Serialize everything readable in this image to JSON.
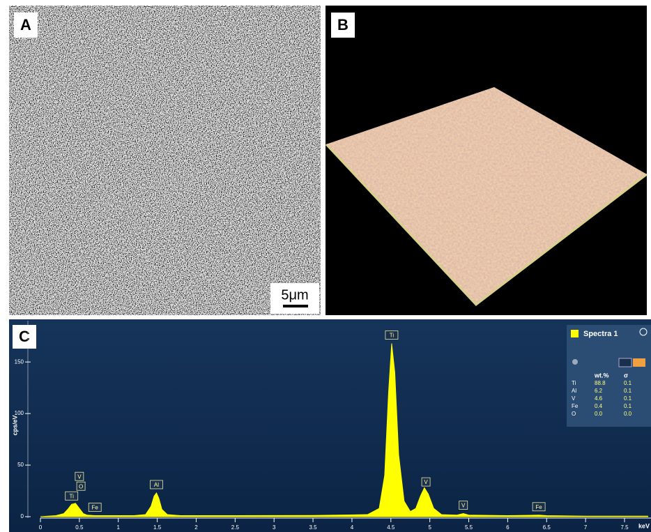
{
  "panels": {
    "a": {
      "label": "A",
      "scale_bar": "5μm"
    },
    "b": {
      "label": "B"
    },
    "c": {
      "label": "C"
    }
  },
  "chart_data": {
    "type": "area",
    "xlabel": "keV",
    "ylabel": "cps/eV",
    "x": [
      0,
      0.1,
      0.2,
      0.3,
      0.35,
      0.4,
      0.45,
      0.5,
      0.55,
      0.6,
      0.7,
      0.8,
      1.0,
      1.2,
      1.35,
      1.42,
      1.46,
      1.49,
      1.52,
      1.56,
      1.63,
      1.8,
      2.5,
      3.5,
      4.2,
      4.35,
      4.42,
      4.47,
      4.51,
      4.55,
      4.6,
      4.67,
      4.75,
      4.82,
      4.88,
      4.93,
      4.98,
      5.05,
      5.15,
      5.35,
      5.43,
      5.5,
      6.0,
      6.4,
      6.5,
      7.0,
      7.8
    ],
    "series": [
      {
        "name": "Spectra 1",
        "color": "#ffff00",
        "values": [
          0,
          0.5,
          1,
          3,
          7,
          12,
          13,
          8,
          3,
          1.5,
          1,
          1,
          1,
          1,
          2,
          10,
          20,
          23,
          18,
          7,
          2,
          1,
          1,
          1.2,
          2,
          8,
          40,
          120,
          168,
          140,
          60,
          15,
          5,
          8,
          20,
          28,
          22,
          8,
          2,
          1.5,
          3,
          1.5,
          1,
          1.5,
          1,
          0.5,
          0.5
        ]
      }
    ],
    "xlim": [
      0,
      7.84
    ],
    "ylim": [
      0,
      190
    ],
    "xticks": [
      0,
      0.5,
      1,
      1.5,
      2,
      2.5,
      3,
      3.5,
      4,
      4.5,
      5,
      5.5,
      6,
      6.5,
      7,
      7.5
    ],
    "yticks": [
      0,
      50,
      100,
      150
    ],
    "annotations": [
      {
        "text": "Ti",
        "x": 0.4
      },
      {
        "text": "O",
        "x": 0.52
      },
      {
        "text": "V",
        "x": 0.5
      },
      {
        "text": "Fe",
        "x": 0.7
      },
      {
        "text": "Al",
        "x": 1.49
      },
      {
        "text": "Ti",
        "x": 4.51
      },
      {
        "text": "V",
        "x": 4.95
      },
      {
        "text": "V",
        "x": 5.43
      },
      {
        "text": "Fe",
        "x": 6.4
      }
    ],
    "results": {
      "header": [
        "wt.%",
        "σ"
      ],
      "rows": [
        [
          "Ti",
          "88.8",
          "0.1"
        ],
        [
          "Al",
          "6.2",
          "0.1"
        ],
        [
          "V",
          "4.6",
          "0.1"
        ],
        [
          "Fe",
          "0.4",
          "0.1"
        ],
        [
          "O",
          "0.0",
          "0.0"
        ]
      ]
    }
  }
}
